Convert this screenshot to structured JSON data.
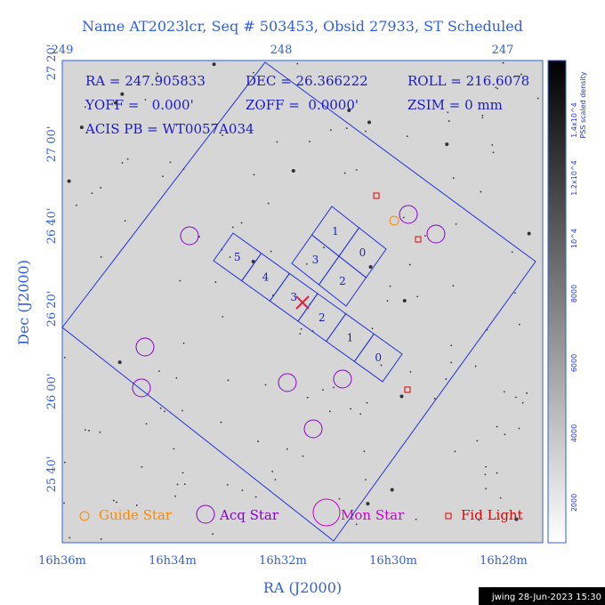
{
  "title": "Name AT2023lcr, Seq # 503453, Obsid 27933, ST Scheduled",
  "info": {
    "ra": "RA = 247.905833",
    "dec": "DEC = 26.366222",
    "roll": "ROLL = 216.6078",
    "yoff": "YOFF =   0.000'",
    "zoff": "ZOFF =  0.0000'",
    "zsim": "ZSIM = 0 mm",
    "acis": "ACIS PB = WT0057A034"
  },
  "axes": {
    "xlabel": "RA (J2000)",
    "ylabel": "Dec (J2000)",
    "top_ticks": [
      "249",
      "248",
      "247"
    ],
    "bottom_ticks": [
      "16h36m",
      "16h34m",
      "16h32m",
      "16h30m",
      "16h28m"
    ],
    "left_ticks": [
      "27 20'",
      "27 00'",
      "26 40'",
      "26 20'",
      "26 00'",
      "25 40'"
    ]
  },
  "colorbar": {
    "title": "PSS scaled density",
    "ticks": [
      "2000",
      "4000",
      "6000",
      "8000",
      "10^4",
      "1.2x10^4",
      "1.4x10^4"
    ]
  },
  "chips": {
    "acis_s": [
      "5",
      "4",
      "3",
      "2",
      "1",
      "0"
    ],
    "acis_i": [
      "1",
      "0",
      "3",
      "2"
    ]
  },
  "legend": [
    "Guide Star",
    "Acq Star",
    "Mon Star",
    "Fid Light"
  ],
  "footer": "jwing 28-Jun-2023 15:30"
}
